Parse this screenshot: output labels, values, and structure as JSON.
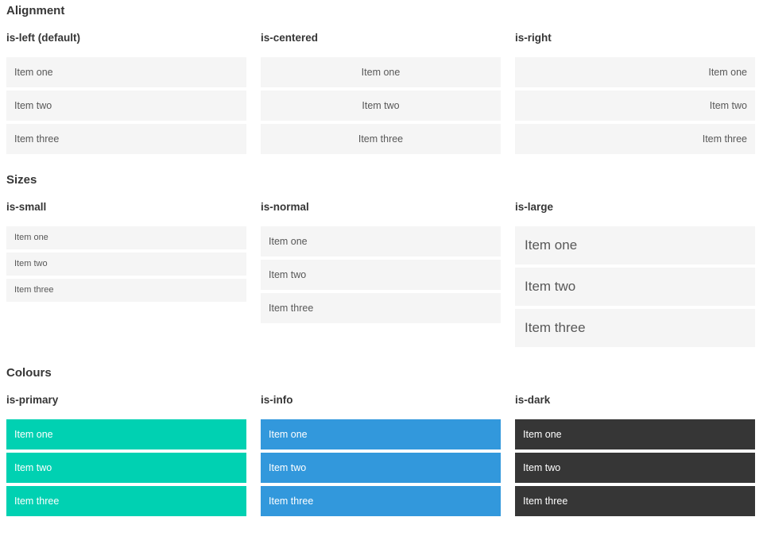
{
  "colors": {
    "primary": "#00d1b2",
    "info": "#3298dc",
    "dark": "#363636",
    "item-bg": "#f5f5f5",
    "item-text": "#585858",
    "heading": "#363636"
  },
  "sections": [
    {
      "title": "Alignment",
      "columns": [
        {
          "label": "is-left (default)",
          "variant": "is-left",
          "items": [
            "Item one",
            "Item two",
            "Item three"
          ]
        },
        {
          "label": "is-centered",
          "variant": "is-centered",
          "items": [
            "Item one",
            "Item two",
            "Item three"
          ]
        },
        {
          "label": "is-right",
          "variant": "is-right",
          "items": [
            "Item one",
            "Item two",
            "Item three"
          ]
        }
      ]
    },
    {
      "title": "Sizes",
      "columns": [
        {
          "label": "is-small",
          "variant": "is-small",
          "items": [
            "Item one",
            "Item two",
            "Item three"
          ]
        },
        {
          "label": "is-normal",
          "variant": "is-normal",
          "items": [
            "Item one",
            "Item two",
            "Item three"
          ]
        },
        {
          "label": "is-large",
          "variant": "is-large",
          "items": [
            "Item one",
            "Item two",
            "Item three"
          ]
        }
      ]
    },
    {
      "title": "Colours",
      "columns": [
        {
          "label": "is-primary",
          "variant": "is-primary",
          "items": [
            "Item one",
            "Item two",
            "Item three"
          ]
        },
        {
          "label": "is-info",
          "variant": "is-info",
          "items": [
            "Item one",
            "Item two",
            "Item three"
          ]
        },
        {
          "label": "is-dark",
          "variant": "is-dark",
          "items": [
            "Item one",
            "Item two",
            "Item three"
          ]
        }
      ]
    }
  ]
}
